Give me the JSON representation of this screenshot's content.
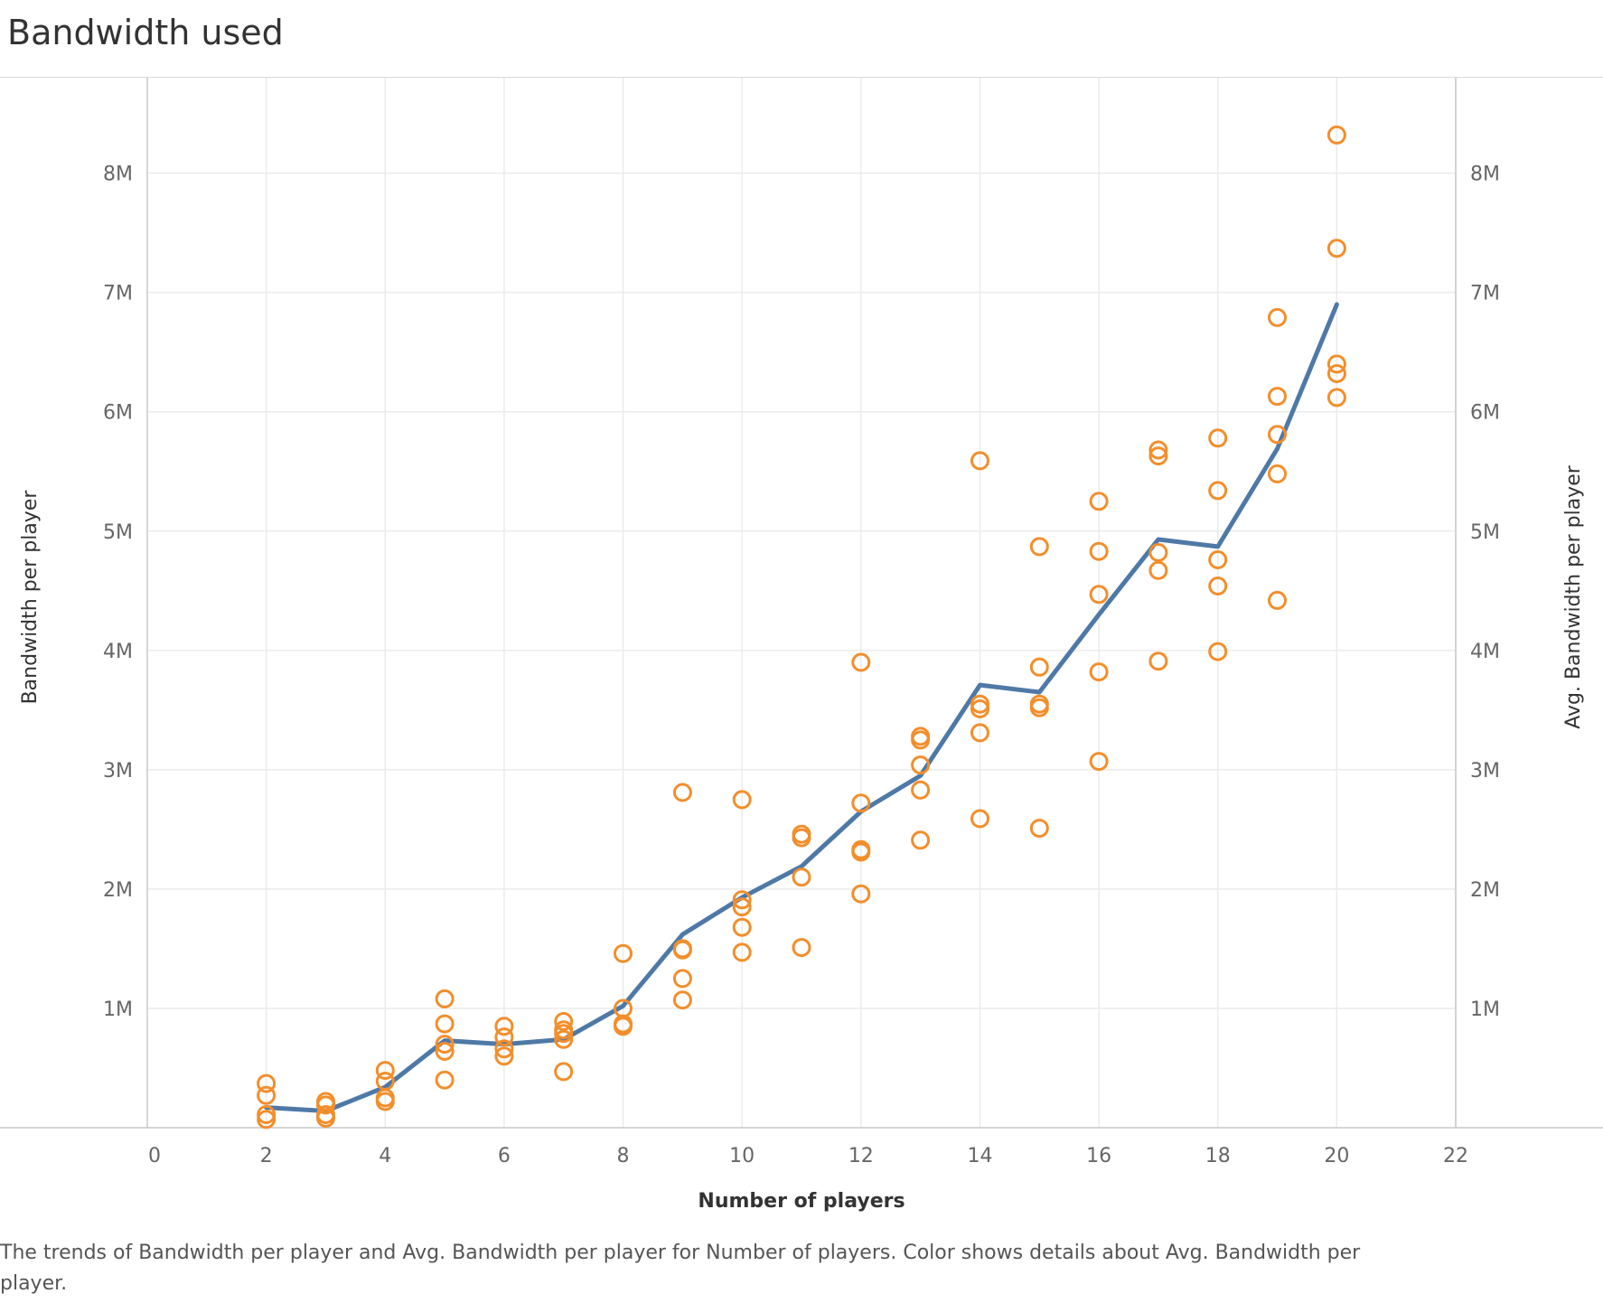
{
  "title": "Bandwidth used",
  "caption": "The trends of Bandwidth per player and Avg. Bandwidth per player for Number of players.  Color shows details about Avg. Bandwidth per player.",
  "chart_data": {
    "type": "scatter",
    "title": "Bandwidth used",
    "xlabel": "Number of players",
    "ylabel": "Bandwidth per player",
    "y2label": "Avg. Bandwidth per player",
    "xlim": [
      0,
      22
    ],
    "ylim": [
      0,
      8800000
    ],
    "x_ticks": [
      0,
      2,
      4,
      6,
      8,
      10,
      12,
      14,
      16,
      18,
      20,
      22
    ],
    "y_ticks": [
      1000000,
      2000000,
      3000000,
      4000000,
      5000000,
      6000000,
      7000000,
      8000000
    ],
    "y_tick_labels": [
      "1M",
      "2M",
      "3M",
      "4M",
      "5M",
      "6M",
      "7M",
      "8M"
    ],
    "grid": true,
    "colors": {
      "points": "#f28e2b",
      "line": "#4e79a7"
    },
    "series": [
      {
        "name": "Bandwidth per player",
        "kind": "scatter",
        "points": [
          [
            2,
            370000
          ],
          [
            2,
            270000
          ],
          [
            2,
            110000
          ],
          [
            2,
            70000
          ],
          [
            3,
            220000
          ],
          [
            3,
            190000
          ],
          [
            3,
            110000
          ],
          [
            3,
            80000
          ],
          [
            4,
            480000
          ],
          [
            4,
            390000
          ],
          [
            4,
            250000
          ],
          [
            4,
            220000
          ],
          [
            5,
            1080000
          ],
          [
            5,
            870000
          ],
          [
            5,
            700000
          ],
          [
            5,
            640000
          ],
          [
            5,
            400000
          ],
          [
            6,
            850000
          ],
          [
            6,
            760000
          ],
          [
            6,
            660000
          ],
          [
            6,
            600000
          ],
          [
            7,
            890000
          ],
          [
            7,
            820000
          ],
          [
            7,
            790000
          ],
          [
            7,
            740000
          ],
          [
            7,
            470000
          ],
          [
            8,
            1460000
          ],
          [
            8,
            1000000
          ],
          [
            8,
            870000
          ],
          [
            8,
            850000
          ],
          [
            9,
            2810000
          ],
          [
            9,
            1500000
          ],
          [
            9,
            1490000
          ],
          [
            9,
            1250000
          ],
          [
            9,
            1070000
          ],
          [
            10,
            2750000
          ],
          [
            10,
            1910000
          ],
          [
            10,
            1850000
          ],
          [
            10,
            1680000
          ],
          [
            10,
            1470000
          ],
          [
            11,
            2460000
          ],
          [
            11,
            2430000
          ],
          [
            11,
            2100000
          ],
          [
            11,
            1510000
          ],
          [
            12,
            3900000
          ],
          [
            12,
            2720000
          ],
          [
            12,
            2330000
          ],
          [
            12,
            2310000
          ],
          [
            12,
            1960000
          ],
          [
            13,
            3280000
          ],
          [
            13,
            3250000
          ],
          [
            13,
            3040000
          ],
          [
            13,
            2830000
          ],
          [
            13,
            2410000
          ],
          [
            14,
            5590000
          ],
          [
            14,
            3550000
          ],
          [
            14,
            3510000
          ],
          [
            14,
            3310000
          ],
          [
            14,
            2590000
          ],
          [
            15,
            4870000
          ],
          [
            15,
            3860000
          ],
          [
            15,
            3550000
          ],
          [
            15,
            3520000
          ],
          [
            15,
            2510000
          ],
          [
            16,
            5250000
          ],
          [
            16,
            4830000
          ],
          [
            16,
            4470000
          ],
          [
            16,
            3820000
          ],
          [
            16,
            3070000
          ],
          [
            17,
            5680000
          ],
          [
            17,
            5630000
          ],
          [
            17,
            4820000
          ],
          [
            17,
            4670000
          ],
          [
            17,
            3910000
          ],
          [
            18,
            5780000
          ],
          [
            18,
            5340000
          ],
          [
            18,
            4760000
          ],
          [
            18,
            4540000
          ],
          [
            18,
            3990000
          ],
          [
            19,
            6790000
          ],
          [
            19,
            6130000
          ],
          [
            19,
            5810000
          ],
          [
            19,
            5480000
          ],
          [
            19,
            4420000
          ],
          [
            20,
            8320000
          ],
          [
            20,
            7370000
          ],
          [
            20,
            6400000
          ],
          [
            20,
            6320000
          ],
          [
            20,
            6120000
          ]
        ]
      },
      {
        "name": "Avg. Bandwidth per player",
        "kind": "line",
        "x": [
          2,
          3,
          4,
          5,
          6,
          7,
          8,
          9,
          10,
          11,
          12,
          13,
          14,
          15,
          16,
          17,
          18,
          19,
          20
        ],
        "values": [
          170000,
          140000,
          340000,
          730000,
          700000,
          740000,
          1020000,
          1620000,
          1930000,
          2190000,
          2650000,
          2950000,
          3710000,
          3650000,
          4300000,
          4930000,
          4870000,
          5690000,
          6900000
        ]
      }
    ]
  }
}
